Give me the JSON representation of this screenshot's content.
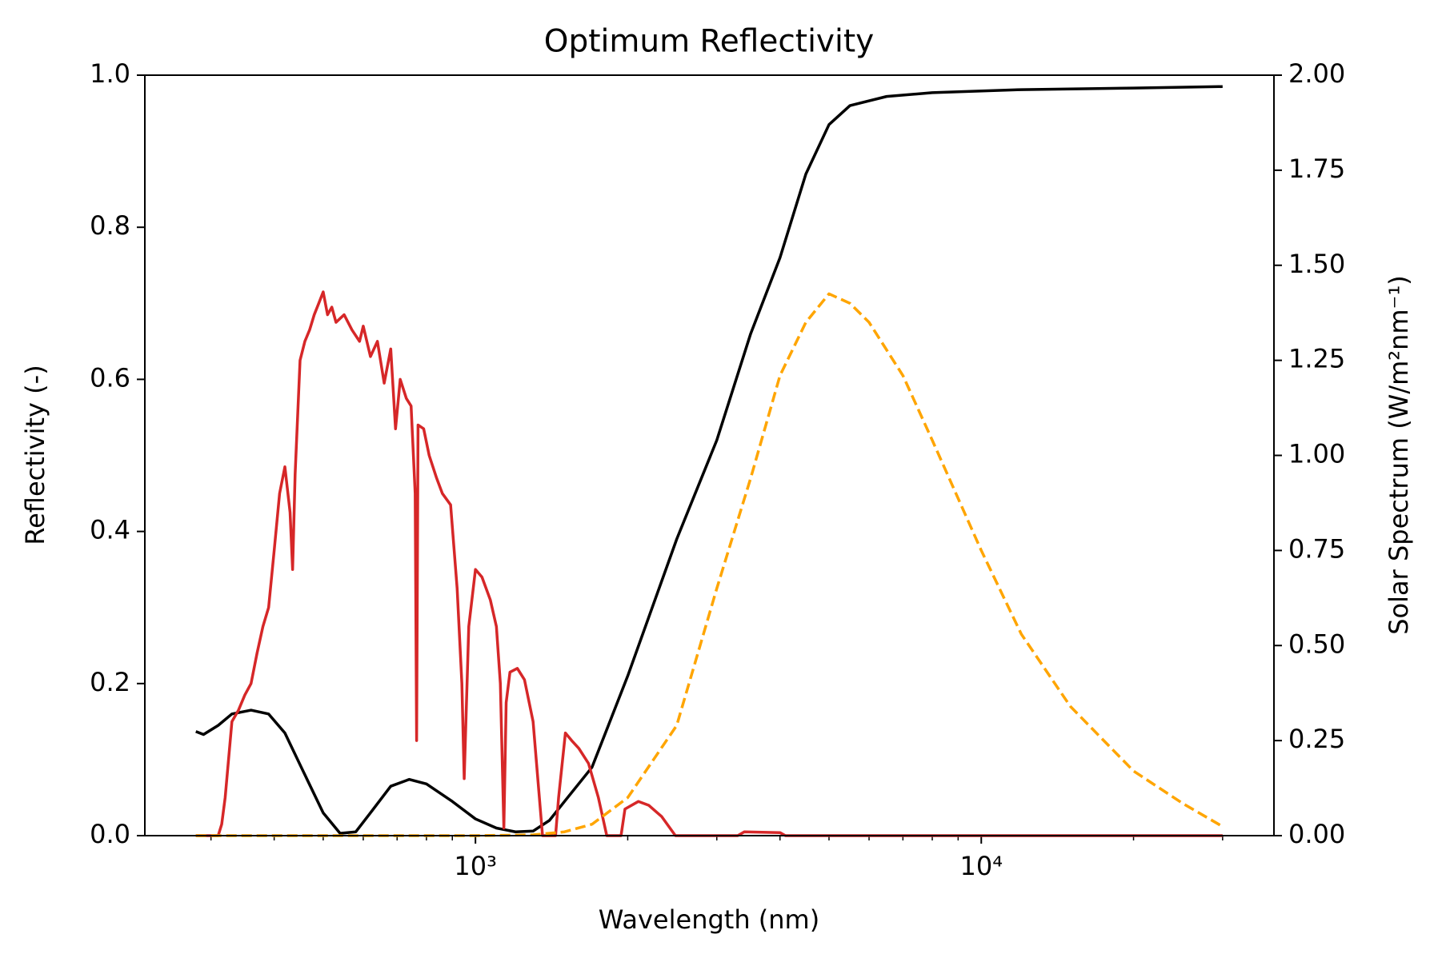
{
  "chart_data": {
    "type": "line",
    "title": "Optimum Reflectivity",
    "xlabel": "Wavelength (nm)",
    "ylabel": "Reflectivity (-)",
    "y2label": "Solar Spectrum (W/m²nm⁻¹)",
    "xscale": "log",
    "xlim": [
      222,
      37900
    ],
    "xticks": [
      {
        "value": 1000,
        "label": "10³"
      },
      {
        "value": 10000,
        "label": "10⁴"
      }
    ],
    "xminorticks": [
      300,
      400,
      500,
      600,
      700,
      800,
      900,
      2000,
      3000,
      4000,
      5000,
      6000,
      7000,
      8000,
      9000,
      20000,
      30000
    ],
    "ylim": [
      0,
      1
    ],
    "yticks": [
      {
        "value": 0,
        "label": "0.0"
      },
      0.2,
      0.4,
      0.6,
      0.8,
      {
        "value": 1,
        "label": "1.0"
      }
    ],
    "y2lim": [
      0,
      2
    ],
    "y2ticks": [
      {
        "value": 0,
        "label": "0.00"
      },
      {
        "value": 0.25,
        "label": "0.25"
      },
      {
        "value": 0.5,
        "label": "0.50"
      },
      {
        "value": 0.75,
        "label": "0.75"
      },
      {
        "value": 1,
        "label": "1.00"
      },
      {
        "value": 1.25,
        "label": "1.25"
      },
      {
        "value": 1.5,
        "label": "1.50"
      },
      {
        "value": 1.75,
        "label": "1.75"
      },
      {
        "value": 2,
        "label": "2.00"
      }
    ],
    "y2color": "#d62728",
    "grid": false,
    "series": [
      {
        "color": "#000000",
        "linestyle": "solid",
        "x": [
          280,
          290,
          310,
          330,
          360,
          390,
          420,
          460,
          500,
          540,
          580,
          620,
          680,
          740,
          800,
          900,
          1000,
          1100,
          1200,
          1300,
          1400,
          1500,
          1700,
          2000,
          2500,
          3000,
          3500,
          4000,
          4500,
          5000,
          5500,
          6500,
          8000,
          12000,
          20000,
          30000
        ],
        "values": [
          0.137,
          0.133,
          0.145,
          0.16,
          0.165,
          0.16,
          0.135,
          0.08,
          0.03,
          0.003,
          0.005,
          0.03,
          0.065,
          0.074,
          0.068,
          0.045,
          0.022,
          0.01,
          0.005,
          0.006,
          0.02,
          0.045,
          0.09,
          0.21,
          0.39,
          0.52,
          0.66,
          0.76,
          0.87,
          0.935,
          0.96,
          0.972,
          0.977,
          0.981,
          0.983,
          0.985
        ]
      },
      {
        "color": "#d62728",
        "linestyle": "solid",
        "axis": "y2",
        "x": [
          280,
          310,
          315,
          320,
          330,
          340,
          350,
          360,
          370,
          380,
          390,
          400,
          410,
          420,
          430,
          435,
          440,
          450,
          460,
          470,
          480,
          490,
          500,
          510,
          520,
          530,
          550,
          570,
          590,
          600,
          620,
          640,
          660,
          680,
          695,
          710,
          730,
          746,
          760,
          765,
          770,
          790,
          810,
          838,
          860,
          893,
          920,
          940,
          950,
          970,
          1000,
          1030,
          1070,
          1100,
          1120,
          1138,
          1150,
          1170,
          1210,
          1250,
          1300,
          1330,
          1357,
          1440,
          1460,
          1506,
          1550,
          1600,
          1673,
          1750,
          1818,
          1940,
          1975,
          2100,
          2200,
          2335,
          2485,
          3300,
          3400,
          4000,
          4100,
          30000
        ],
        "values": [
          0,
          0,
          0.03,
          0.1,
          0.3,
          0.33,
          0.37,
          0.4,
          0.48,
          0.55,
          0.6,
          0.75,
          0.9,
          0.97,
          0.85,
          0.7,
          0.95,
          1.25,
          1.3,
          1.33,
          1.37,
          1.4,
          1.43,
          1.37,
          1.39,
          1.35,
          1.37,
          1.33,
          1.3,
          1.34,
          1.26,
          1.3,
          1.19,
          1.28,
          1.07,
          1.2,
          1.15,
          1.13,
          0.9,
          0.25,
          1.08,
          1.07,
          1.0,
          0.94,
          0.9,
          0.87,
          0.65,
          0.4,
          0.15,
          0.55,
          0.7,
          0.68,
          0.62,
          0.55,
          0.4,
          0.02,
          0.35,
          0.43,
          0.44,
          0.41,
          0.3,
          0.14,
          0,
          0,
          0.1,
          0.27,
          0.25,
          0.23,
          0.19,
          0.1,
          0,
          0,
          0.07,
          0.09,
          0.08,
          0.05,
          0,
          0,
          0.01,
          0.008,
          0,
          0
        ]
      },
      {
        "color": "#ffa500",
        "linestyle": "dashed",
        "axis": "y2",
        "x": [
          280,
          600,
          1000,
          1300,
          1500,
          1700,
          2000,
          2500,
          3000,
          3500,
          4000,
          4500,
          5000,
          5500,
          6000,
          7000,
          8000,
          10000,
          12000,
          15000,
          20000,
          25000,
          30000
        ],
        "values": [
          0,
          0,
          0,
          0.002,
          0.01,
          0.03,
          0.1,
          0.29,
          0.65,
          0.94,
          1.21,
          1.35,
          1.425,
          1.4,
          1.35,
          1.21,
          1.04,
          0.75,
          0.53,
          0.34,
          0.17,
          0.085,
          0.024
        ]
      }
    ]
  }
}
